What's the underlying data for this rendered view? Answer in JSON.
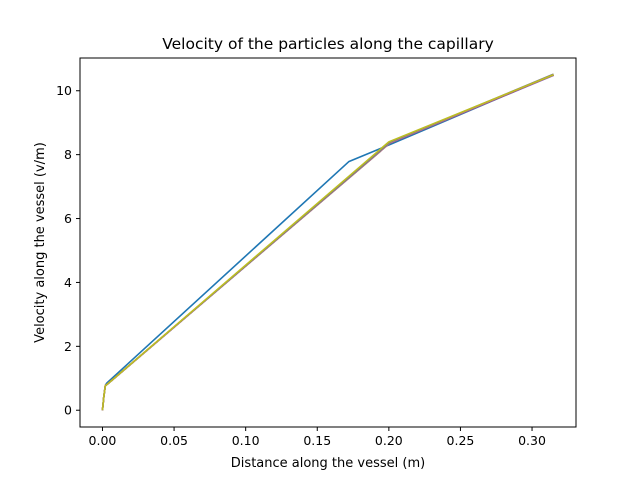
{
  "chart_data": {
    "type": "line",
    "title": "Velocity of the particles along the capillary",
    "xlabel": "Distance along the vessel (m)",
    "ylabel": "Velocity along the vessel (v/m)",
    "xlim": [
      -0.0157,
      0.3307
    ],
    "ylim": [
      -0.525,
      11.025
    ],
    "x_ticks": [
      0.0,
      0.05,
      0.1,
      0.15,
      0.2,
      0.25,
      0.3
    ],
    "x_tick_labels": [
      "0.00",
      "0.05",
      "0.10",
      "0.15",
      "0.20",
      "0.25",
      "0.30"
    ],
    "y_ticks": [
      0,
      2,
      4,
      6,
      8,
      10
    ],
    "y_tick_labels": [
      "0",
      "2",
      "4",
      "6",
      "8",
      "10"
    ],
    "grid": false,
    "legend": false,
    "series": [
      {
        "color": "#1f77b4",
        "x": [
          0.0,
          0.001,
          0.002,
          0.003,
          0.172,
          0.2,
          0.315
        ],
        "y": [
          0.0,
          0.45,
          0.78,
          0.85,
          7.78,
          8.3,
          10.5
        ]
      },
      {
        "color": "#ff7f0e",
        "x": [
          0.0,
          0.001,
          0.002,
          0.003,
          0.2,
          0.315
        ],
        "y": [
          0.0,
          0.45,
          0.78,
          0.8,
          8.38,
          10.5
        ]
      },
      {
        "color": "#2ca02c",
        "x": [
          0.0,
          0.001,
          0.002,
          0.003,
          0.2,
          0.315
        ],
        "y": [
          0.0,
          0.45,
          0.77,
          0.8,
          8.36,
          10.49
        ]
      },
      {
        "color": "#d62728",
        "x": [
          0.0,
          0.001,
          0.002,
          0.003,
          0.2,
          0.315
        ],
        "y": [
          0.0,
          0.45,
          0.77,
          0.8,
          8.35,
          10.49
        ]
      },
      {
        "color": "#9467bd",
        "x": [
          0.0,
          0.001,
          0.002,
          0.003,
          0.2,
          0.315
        ],
        "y": [
          0.0,
          0.45,
          0.77,
          0.8,
          8.35,
          10.48
        ]
      },
      {
        "color": "#8c564b",
        "x": [
          0.0,
          0.001,
          0.002,
          0.003,
          0.201,
          0.315
        ],
        "y": [
          0.0,
          0.45,
          0.77,
          0.8,
          8.37,
          10.5
        ]
      },
      {
        "color": "#e377c2",
        "x": [
          0.0,
          0.001,
          0.002,
          0.003,
          0.201,
          0.315
        ],
        "y": [
          0.0,
          0.45,
          0.77,
          0.8,
          8.38,
          10.51
        ]
      },
      {
        "color": "#7f7f7f",
        "x": [
          0.0,
          0.001,
          0.002,
          0.003,
          0.201,
          0.315
        ],
        "y": [
          0.0,
          0.45,
          0.77,
          0.8,
          8.39,
          10.52
        ]
      },
      {
        "color": "#bcbd22",
        "x": [
          0.0,
          0.001,
          0.002,
          0.003,
          0.2,
          0.315
        ],
        "y": [
          0.0,
          0.45,
          0.77,
          0.8,
          8.4,
          10.5
        ]
      }
    ]
  }
}
